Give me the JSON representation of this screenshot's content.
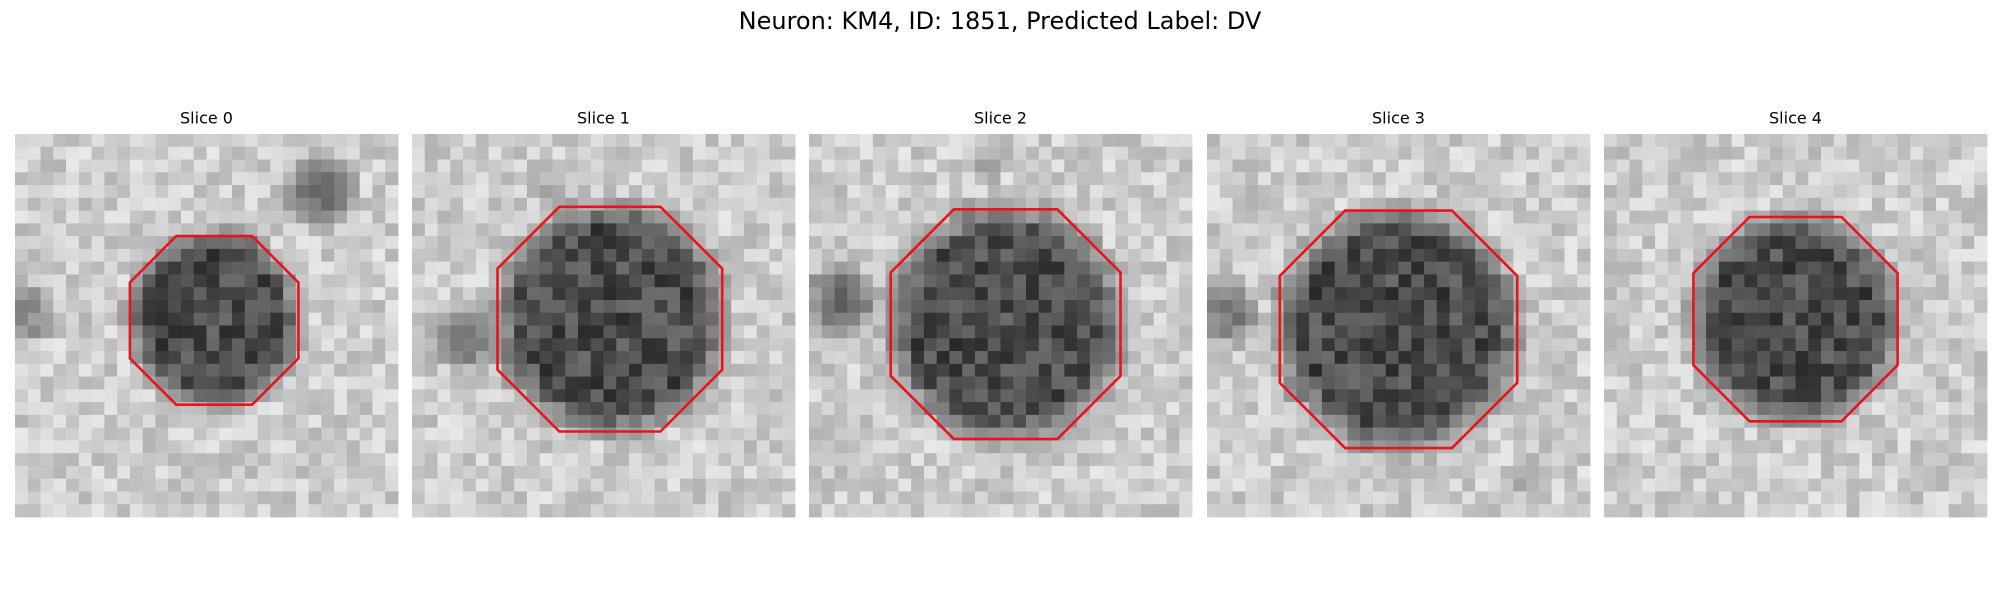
{
  "header": {
    "title": "Neuron: KM4, ID: 1851, Predicted Label: DV"
  },
  "panels": [
    {
      "title": "Slice 0"
    },
    {
      "title": "Slice 1"
    },
    {
      "title": "Slice 2"
    },
    {
      "title": "Slice 3"
    },
    {
      "title": "Slice 4"
    }
  ]
}
